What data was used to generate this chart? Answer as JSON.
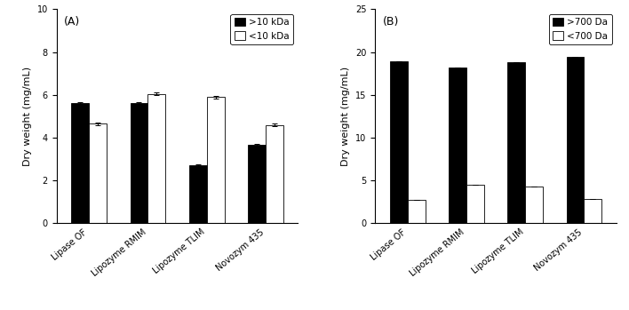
{
  "panel_A": {
    "label": "(A)",
    "categories": [
      "Lipase OF",
      "Lipozyme RMIM",
      "Lipozyme TLIM",
      "Novozym 435"
    ],
    "dark_values": [
      5.6,
      5.6,
      2.7,
      3.65
    ],
    "light_values": [
      4.65,
      6.05,
      5.9,
      4.6
    ],
    "dark_errors": [
      0.05,
      0.05,
      0.07,
      0.05
    ],
    "light_errors": [
      0.05,
      0.07,
      0.07,
      0.06
    ],
    "ylabel": "Dry weight (mg/mL)",
    "ylim": [
      0,
      10
    ],
    "yticks": [
      0,
      2,
      4,
      6,
      8,
      10
    ],
    "legend_dark": ">10 kDa",
    "legend_light": "<10 kDa"
  },
  "panel_B": {
    "label": "(B)",
    "categories": [
      "Lipase OF",
      "Lipozyme RMIM",
      "Lipozyme TLIM",
      "Novozym 435"
    ],
    "dark_values": [
      18.9,
      18.2,
      18.8,
      19.4
    ],
    "light_values": [
      2.7,
      4.5,
      4.3,
      2.85
    ],
    "dark_errors": [
      0.0,
      0.0,
      0.0,
      0.0
    ],
    "light_errors": [
      0.0,
      0.0,
      0.0,
      0.0
    ],
    "ylabel": "Dry weight (mg/mL)",
    "ylim": [
      0,
      25
    ],
    "yticks": [
      0,
      5,
      10,
      15,
      20,
      25
    ],
    "legend_dark": ">700 Da",
    "legend_light": "<700 Da"
  },
  "bar_width": 0.3,
  "dark_color": "#000000",
  "light_color": "#ffffff",
  "edge_color": "#000000",
  "fontsize_label": 8,
  "fontsize_tick": 7,
  "fontsize_legend": 7.5,
  "fontsize_panel": 9
}
